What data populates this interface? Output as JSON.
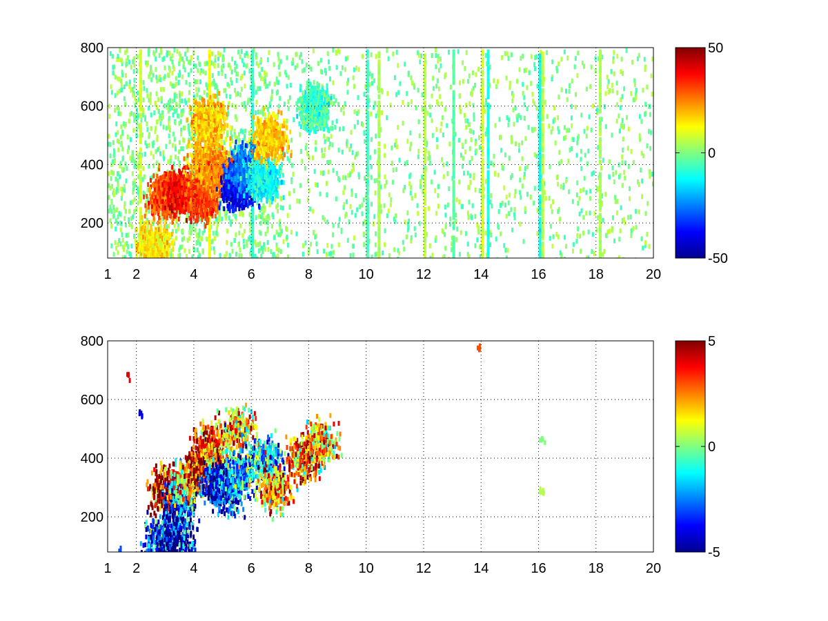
{
  "chart_data": [
    {
      "type": "heatmap",
      "title": "",
      "xlabel": "",
      "ylabel": "",
      "xlim": [
        1,
        20
      ],
      "ylim": [
        80,
        800
      ],
      "x_ticks": [
        1,
        2,
        4,
        6,
        8,
        10,
        12,
        14,
        16,
        18,
        20
      ],
      "y_ticks": [
        200,
        400,
        600,
        800
      ],
      "grid": true,
      "colormap": "jet",
      "clim": [
        -50,
        50
      ],
      "colorbar_ticks": [
        50,
        0,
        -50
      ],
      "colorbar_labels": [
        "50",
        "0",
        "-50"
      ],
      "vertical_streaks": [
        {
          "x": 2.1,
          "value": 8
        },
        {
          "x": 4.5,
          "value": 12
        },
        {
          "x": 6.0,
          "value": -8
        },
        {
          "x": 10.0,
          "value": -6
        },
        {
          "x": 10.4,
          "value": 4
        },
        {
          "x": 12.0,
          "value": 6
        },
        {
          "x": 13.0,
          "value": -4
        },
        {
          "x": 14.0,
          "value": 8
        },
        {
          "x": 14.2,
          "value": -10
        },
        {
          "x": 16.0,
          "value": -12
        },
        {
          "x": 16.1,
          "value": 6
        },
        {
          "x": 18.1,
          "value": 4
        }
      ],
      "blobs": [
        {
          "x": 3.0,
          "y": 300,
          "value": 30
        },
        {
          "x": 3.6,
          "y": 310,
          "value": 38
        },
        {
          "x": 4.2,
          "y": 300,
          "value": 32
        },
        {
          "x": 4.4,
          "y": 420,
          "value": 20
        },
        {
          "x": 4.5,
          "y": 560,
          "value": 18
        },
        {
          "x": 4.9,
          "y": 380,
          "value": 25
        },
        {
          "x": 5.5,
          "y": 330,
          "value": -38
        },
        {
          "x": 5.8,
          "y": 400,
          "value": -25
        },
        {
          "x": 6.4,
          "y": 360,
          "value": -12
        },
        {
          "x": 2.6,
          "y": 130,
          "value": 15
        },
        {
          "x": 6.6,
          "y": 500,
          "value": 18
        },
        {
          "x": 8.2,
          "y": 600,
          "value": -6
        }
      ]
    },
    {
      "type": "heatmap",
      "title": "",
      "xlabel": "",
      "ylabel": "",
      "xlim": [
        1,
        20
      ],
      "ylim": [
        80,
        800
      ],
      "x_ticks": [
        1,
        2,
        4,
        6,
        8,
        10,
        12,
        14,
        16,
        18,
        20
      ],
      "y_ticks": [
        200,
        400,
        600,
        800
      ],
      "grid": true,
      "colormap": "jet",
      "clim": [
        -5,
        5
      ],
      "colorbar_ticks": [
        5,
        0,
        -5
      ],
      "colorbar_labels": [
        "5",
        "0",
        "-5"
      ],
      "blobs": [
        {
          "x": 3.0,
          "y": 300,
          "value": 4
        },
        {
          "x": 3.5,
          "y": 260,
          "value": -4
        },
        {
          "x": 3.7,
          "y": 320,
          "value": 1
        },
        {
          "x": 4.3,
          "y": 380,
          "value": 4.5
        },
        {
          "x": 4.6,
          "y": 450,
          "value": 3
        },
        {
          "x": 4.8,
          "y": 320,
          "value": -4.5
        },
        {
          "x": 5.2,
          "y": 300,
          "value": -3
        },
        {
          "x": 5.5,
          "y": 500,
          "value": 2
        },
        {
          "x": 5.6,
          "y": 360,
          "value": -2
        },
        {
          "x": 6.5,
          "y": 400,
          "value": -1.5
        },
        {
          "x": 6.8,
          "y": 300,
          "value": 2
        },
        {
          "x": 2.8,
          "y": 130,
          "value": -3
        },
        {
          "x": 3.4,
          "y": 130,
          "value": -4.5
        },
        {
          "x": 8.4,
          "y": 460,
          "value": 2
        },
        {
          "x": 7.8,
          "y": 400,
          "value": 3
        }
      ],
      "sparse_points": [
        {
          "x": 1.7,
          "y": 680,
          "value": 4
        },
        {
          "x": 2.1,
          "y": 560,
          "value": -4
        },
        {
          "x": 13.9,
          "y": 780,
          "value": 3
        },
        {
          "x": 16.1,
          "y": 470,
          "value": 0
        },
        {
          "x": 16.1,
          "y": 300,
          "value": 0.5
        },
        {
          "x": 1.4,
          "y": 90,
          "value": -3
        }
      ]
    }
  ]
}
